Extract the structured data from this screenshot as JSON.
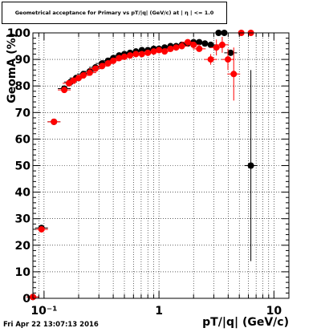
{
  "header": {
    "title": "Geometrical acceptance for Primary vs pT/|q| (GeV/c) at | η | <= 1.0"
  },
  "footer": {
    "timestamp": "Fri Apr 22 13:07:13 2016"
  },
  "colors": {
    "series_black": "#000000",
    "series_red": "#ff0000",
    "grid": "#000000",
    "background": "#ffffff"
  },
  "chart_data": {
    "type": "scatter",
    "title": "Geometrical acceptance for Primary vs pT/|q| (GeV/c) at | η | <= 1.0",
    "xlabel": "pT/|q| (GeV/c)",
    "ylabel": "GeomA (%)",
    "xscale": "log",
    "xlim": [
      0.08,
      13.5
    ],
    "ylim": [
      0,
      100
    ],
    "grid": true,
    "legend": "none",
    "x_ticks": [
      {
        "value": 0.1,
        "label": "10⁻¹"
      },
      {
        "value": 1,
        "label": "1"
      },
      {
        "value": 10,
        "label": "10"
      }
    ],
    "y_ticks": [
      0,
      10,
      20,
      30,
      40,
      50,
      60,
      70,
      80,
      90,
      100
    ],
    "y_tick_labels": [
      "0",
      "10",
      "20",
      "30",
      "40",
      "50",
      "60",
      "70",
      "80",
      "90",
      "100"
    ],
    "series": [
      {
        "color": "#000000",
        "points": [
          {
            "x": 0.08,
            "y": 0.5
          },
          {
            "x": 0.095,
            "y": 26.5
          },
          {
            "x": 0.122,
            "y": 66.5
          },
          {
            "x": 0.15,
            "y": 79
          },
          {
            "x": 0.17,
            "y": 81.5
          },
          {
            "x": 0.19,
            "y": 83
          },
          {
            "x": 0.22,
            "y": 84.5
          },
          {
            "x": 0.25,
            "y": 85.5
          },
          {
            "x": 0.28,
            "y": 87
          },
          {
            "x": 0.32,
            "y": 88.5
          },
          {
            "x": 0.36,
            "y": 89.5
          },
          {
            "x": 0.4,
            "y": 90.5
          },
          {
            "x": 0.45,
            "y": 91.5
          },
          {
            "x": 0.5,
            "y": 92
          },
          {
            "x": 0.56,
            "y": 92.5
          },
          {
            "x": 0.63,
            "y": 93
          },
          {
            "x": 0.71,
            "y": 93.5
          },
          {
            "x": 0.8,
            "y": 93.5
          },
          {
            "x": 0.9,
            "y": 94
          },
          {
            "x": 1.0,
            "y": 94
          },
          {
            "x": 1.12,
            "y": 94.5
          },
          {
            "x": 1.26,
            "y": 95
          },
          {
            "x": 1.41,
            "y": 95
          },
          {
            "x": 1.58,
            "y": 95.5
          },
          {
            "x": 1.78,
            "y": 96
          },
          {
            "x": 2.0,
            "y": 96.5
          },
          {
            "x": 2.24,
            "y": 96.5
          },
          {
            "x": 2.51,
            "y": 96
          },
          {
            "x": 2.82,
            "y": 95.5
          },
          {
            "x": 3.3,
            "y": 100
          },
          {
            "x": 3.7,
            "y": 100,
            "err": 1
          },
          {
            "x": 4.2,
            "y": 92.5
          },
          {
            "x": 6.3,
            "y": 50,
            "err": 36
          }
        ]
      },
      {
        "color": "#ff0000",
        "points": [
          {
            "x": 0.08,
            "y": 0.5
          },
          {
            "x": 0.095,
            "y": 26
          },
          {
            "x": 0.122,
            "y": 66.5
          },
          {
            "x": 0.15,
            "y": 78.5
          },
          {
            "x": 0.165,
            "y": 81
          },
          {
            "x": 0.18,
            "y": 82
          },
          {
            "x": 0.2,
            "y": 83
          },
          {
            "x": 0.22,
            "y": 84
          },
          {
            "x": 0.25,
            "y": 85
          },
          {
            "x": 0.28,
            "y": 86.5
          },
          {
            "x": 0.32,
            "y": 87.5
          },
          {
            "x": 0.36,
            "y": 88.5
          },
          {
            "x": 0.4,
            "y": 89.5
          },
          {
            "x": 0.45,
            "y": 90.5
          },
          {
            "x": 0.5,
            "y": 91
          },
          {
            "x": 0.56,
            "y": 91.5
          },
          {
            "x": 0.63,
            "y": 92
          },
          {
            "x": 0.71,
            "y": 92
          },
          {
            "x": 0.8,
            "y": 92.5
          },
          {
            "x": 0.9,
            "y": 93
          },
          {
            "x": 1.0,
            "y": 93.5
          },
          {
            "x": 1.12,
            "y": 93
          },
          {
            "x": 1.26,
            "y": 94
          },
          {
            "x": 1.41,
            "y": 94.5
          },
          {
            "x": 1.58,
            "y": 95
          },
          {
            "x": 1.78,
            "y": 96.5
          },
          {
            "x": 2.0,
            "y": 95.5
          },
          {
            "x": 2.24,
            "y": 94
          },
          {
            "x": 2.82,
            "y": 90,
            "err": 2
          },
          {
            "x": 3.16,
            "y": 94.5,
            "err": 3
          },
          {
            "x": 3.55,
            "y": 95.5,
            "err": 3
          },
          {
            "x": 3.98,
            "y": 90,
            "err": 4
          },
          {
            "x": 4.47,
            "y": 84.5,
            "err": 10
          },
          {
            "x": 5.2,
            "y": 100
          },
          {
            "x": 6.3,
            "y": 100
          }
        ]
      }
    ]
  }
}
